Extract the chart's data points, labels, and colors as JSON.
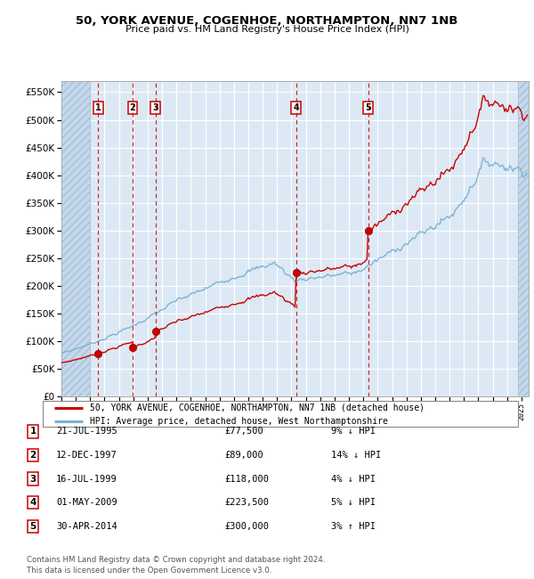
{
  "title": "50, YORK AVENUE, COGENHOE, NORTHAMPTON, NN7 1NB",
  "subtitle": "Price paid vs. HM Land Registry's House Price Index (HPI)",
  "bg_color": "#dce9f5",
  "grid_color": "#ffffff",
  "hpi_line_color": "#7ab0d4",
  "price_line_color": "#cc0000",
  "hatch_bg_color": "#c5d8eb",
  "sales": [
    {
      "label": "1",
      "date_num": 1995.55,
      "price": 77500
    },
    {
      "label": "2",
      "date_num": 1997.95,
      "price": 89000
    },
    {
      "label": "3",
      "date_num": 1999.54,
      "price": 118000
    },
    {
      "label": "4",
      "date_num": 2009.33,
      "price": 223500
    },
    {
      "label": "5",
      "date_num": 2014.33,
      "price": 300000
    }
  ],
  "sale_table": [
    {
      "num": "1",
      "date": "21-JUL-1995",
      "price": "£77,500",
      "hpi": "9% ↓ HPI"
    },
    {
      "num": "2",
      "date": "12-DEC-1997",
      "price": "£89,000",
      "hpi": "14% ↓ HPI"
    },
    {
      "num": "3",
      "date": "16-JUL-1999",
      "price": "£118,000",
      "hpi": "4% ↓ HPI"
    },
    {
      "num": "4",
      "date": "01-MAY-2009",
      "price": "£223,500",
      "hpi": "5% ↓ HPI"
    },
    {
      "num": "5",
      "date": "30-APR-2014",
      "price": "£300,000",
      "hpi": "3% ↑ HPI"
    }
  ],
  "legend_line1": "50, YORK AVENUE, COGENHOE, NORTHAMPTON, NN7 1NB (detached house)",
  "legend_line2": "HPI: Average price, detached house, West Northamptonshire",
  "footer": "Contains HM Land Registry data © Crown copyright and database right 2024.\nThis data is licensed under the Open Government Licence v3.0.",
  "ylim": [
    0,
    570000
  ],
  "xlim_start": 1993.0,
  "xlim_end": 2025.5,
  "yticks": [
    0,
    50000,
    100000,
    150000,
    200000,
    250000,
    300000,
    350000,
    400000,
    450000,
    500000,
    550000
  ],
  "ytick_labels": [
    "£0",
    "£50K",
    "£100K",
    "£150K",
    "£200K",
    "£250K",
    "£300K",
    "£350K",
    "£400K",
    "£450K",
    "£500K",
    "£550K"
  ]
}
